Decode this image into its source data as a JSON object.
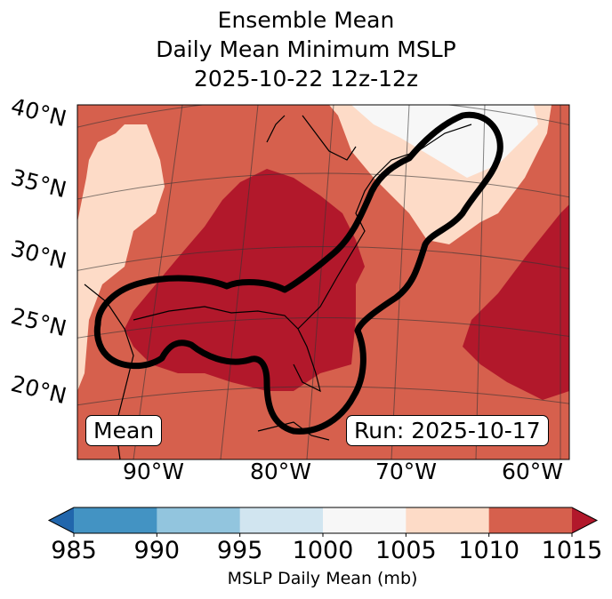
{
  "title": {
    "line1": "Ensemble Mean",
    "line2": "Daily Mean Minimum MSLP",
    "line3": "2025-10-22 12z-12z"
  },
  "map": {
    "lat_labels": [
      "40°N",
      "35°N",
      "30°N",
      "25°N",
      "20°N"
    ],
    "lon_labels": [
      "90°W",
      "80°W",
      "70°W",
      "60°W"
    ],
    "left_box": "Mean",
    "right_box": "Run: 2025-10-17"
  },
  "chart_data": {
    "type": "heatmap",
    "title": "Ensemble Mean Daily Mean Minimum MSLP 2025-10-22 12z-12z",
    "colorbar": {
      "label": "MSLP Daily Mean (mb)",
      "ticks": [
        985,
        990,
        995,
        1000,
        1005,
        1010,
        1015
      ],
      "range": [
        985,
        1015
      ],
      "extend": "both",
      "colors": [
        "#4393c3",
        "#92c5de",
        "#d1e5f0",
        "#f7f7f7",
        "#fddbc7",
        "#d6604d"
      ],
      "under_color": "#2166ac",
      "over_color": "#b2182b"
    },
    "lon_range": [
      -95,
      -58
    ],
    "lat_range": [
      17,
      41
    ]
  }
}
